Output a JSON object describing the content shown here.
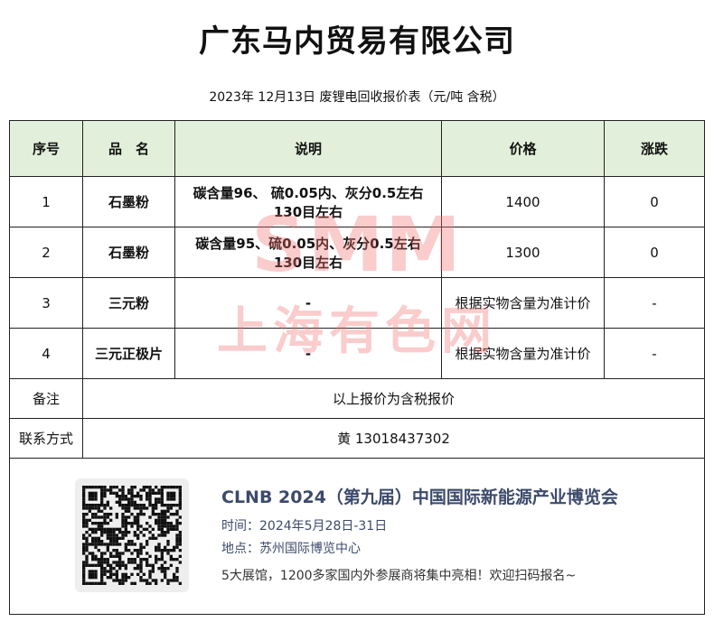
{
  "company": "广东马内贸易有限公司",
  "subtitle": "2023年 12月13日 废锂电回收报价表（元/吨  含税）",
  "table": {
    "headers": [
      "序号",
      "品　名",
      "说明",
      "价格",
      "涨跌"
    ],
    "rows": [
      {
        "no": "1",
        "name": "石墨粉",
        "desc": "碳含量96、 硫0.05内、灰分0.5左右 130目左右",
        "price": "1400",
        "change": "0"
      },
      {
        "no": "2",
        "name": "石墨粉",
        "desc": "碳含量95、硫0.05内、灰分0.5左右 130目左右",
        "price": "1300",
        "change": "0"
      },
      {
        "no": "3",
        "name": "三元粉",
        "desc": "-",
        "price": "根据实物含量为准计价",
        "change": "-"
      },
      {
        "no": "4",
        "name": "三元正极片",
        "desc": "-",
        "price": "根据实物含量为准计价",
        "change": "-"
      }
    ],
    "note_label": "备注",
    "note": "以上报价为含税报价",
    "contact_label": "联系方式",
    "contact": "黄  13018437302"
  },
  "promo": {
    "title": "CLNB 2024（第九届）中国国际新能源产业博览会",
    "time": "时间：2024年5月28日-31日",
    "place": "地点：苏州国际博览中心",
    "desc": "5大展馆，1200多家国内外参展商将集中亮相！欢迎扫码报名~"
  },
  "watermark": {
    "logo": "SMM",
    "name": "上海有色网",
    "color": "#f06e6e"
  }
}
